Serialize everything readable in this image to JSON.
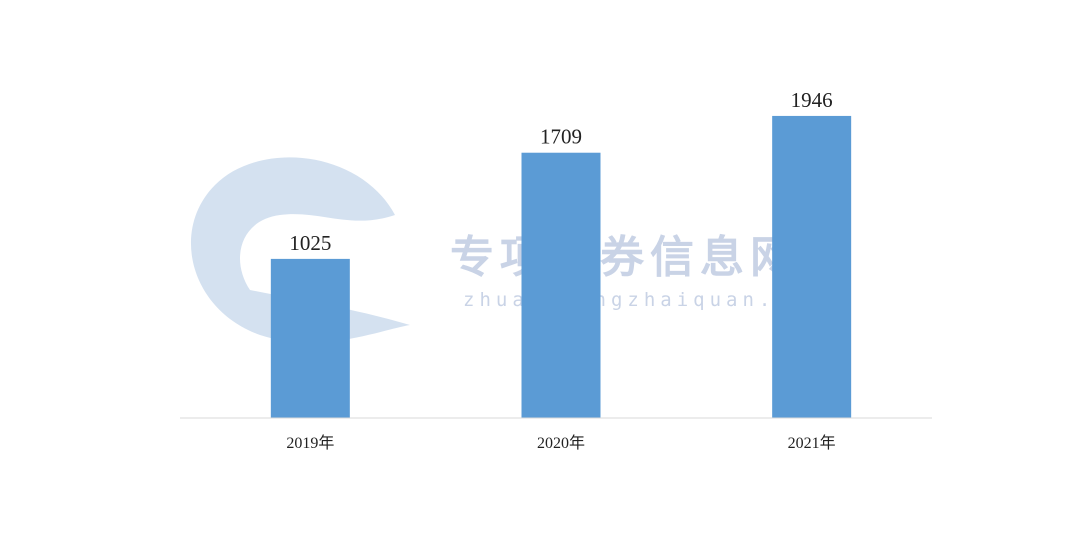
{
  "watermark": {
    "name_cn": "专项债券信息网",
    "domain": "zhuanxiangzhaiquan.com"
  },
  "chart_data": {
    "type": "bar",
    "title": "",
    "xlabel": "",
    "ylabel": "",
    "categories": [
      "2019年",
      "2020年",
      "2021年"
    ],
    "values": [
      1025,
      1709,
      1946
    ],
    "data_labels": [
      "1025",
      "1709",
      "1946"
    ],
    "ylim": [
      0,
      2200
    ],
    "grid": false,
    "legend": "none",
    "colors": {
      "bar": "#5b9bd5",
      "axis": "#d9d9d9",
      "text": "#222222"
    }
  }
}
